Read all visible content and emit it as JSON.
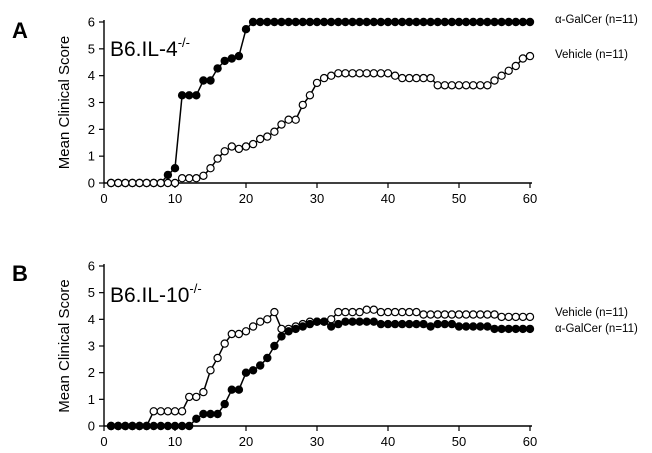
{
  "chart_data": [
    {
      "type": "line",
      "panel_letter": "A",
      "strain": {
        "base": "B6.IL-4",
        "sup": "-/-"
      },
      "ylabel": "Mean Clinical Score",
      "xlabel": "",
      "xlim": [
        0,
        60
      ],
      "ylim": [
        0,
        6
      ],
      "xticks": [
        0,
        10,
        20,
        30,
        40,
        50,
        60
      ],
      "yticks": [
        0,
        1,
        2,
        3,
        4,
        5,
        6
      ],
      "legend_placement": "right",
      "series": [
        {
          "name": "α-GalCer (n=11)",
          "marker": "filled",
          "x": [
            1,
            2,
            3,
            4,
            5,
            6,
            7,
            8,
            9,
            10,
            11,
            12,
            13,
            14,
            15,
            16,
            17,
            18,
            19,
            20,
            21,
            22,
            23,
            24,
            25,
            26,
            27,
            28,
            29,
            30,
            31,
            32,
            33,
            34,
            35,
            36,
            37,
            38,
            39,
            40,
            41,
            42,
            43,
            44,
            45,
            46,
            47,
            48,
            49,
            50,
            51,
            52,
            53,
            54,
            55,
            56,
            57,
            58,
            59,
            60
          ],
          "values": [
            0,
            0,
            0,
            0,
            0,
            0,
            0,
            0,
            0.3,
            0.55,
            3.27,
            3.27,
            3.27,
            3.82,
            3.82,
            4.27,
            4.55,
            4.64,
            4.73,
            5.73,
            6,
            6,
            6,
            6,
            6,
            6,
            6,
            6,
            6,
            6,
            6,
            6,
            6,
            6,
            6,
            6,
            6,
            6,
            6,
            6,
            6,
            6,
            6,
            6,
            6,
            6,
            6,
            6,
            6,
            6,
            6,
            6,
            6,
            6,
            6,
            6,
            6,
            6,
            6,
            6
          ]
        },
        {
          "name": "Vehicle (n=11)",
          "marker": "open",
          "x": [
            1,
            2,
            3,
            4,
            5,
            6,
            7,
            8,
            9,
            10,
            11,
            12,
            13,
            14,
            15,
            16,
            17,
            18,
            19,
            20,
            21,
            22,
            23,
            24,
            25,
            26,
            27,
            28,
            29,
            30,
            31,
            32,
            33,
            34,
            35,
            36,
            37,
            38,
            39,
            40,
            41,
            42,
            43,
            44,
            45,
            46,
            47,
            48,
            49,
            50,
            51,
            52,
            53,
            54,
            55,
            56,
            57,
            58,
            59,
            60
          ],
          "values": [
            0,
            0,
            0,
            0,
            0,
            0,
            0,
            0,
            0,
            0,
            0.18,
            0.18,
            0.18,
            0.27,
            0.55,
            0.91,
            1.18,
            1.36,
            1.27,
            1.36,
            1.45,
            1.64,
            1.73,
            1.91,
            2.18,
            2.36,
            2.36,
            2.91,
            3.27,
            3.73,
            3.91,
            4,
            4.09,
            4.09,
            4.09,
            4.09,
            4.09,
            4.09,
            4.09,
            4.09,
            4,
            3.91,
            3.91,
            3.91,
            3.91,
            3.91,
            3.64,
            3.64,
            3.64,
            3.64,
            3.64,
            3.64,
            3.64,
            3.64,
            3.82,
            4,
            4.18,
            4.36,
            4.64,
            4.73
          ]
        }
      ]
    },
    {
      "type": "line",
      "panel_letter": "B",
      "strain": {
        "base": "B6.IL-10",
        "sup": "-/-"
      },
      "ylabel": "Mean Clinical Score",
      "xlabel": "",
      "xlim": [
        0,
        60
      ],
      "ylim": [
        0,
        6
      ],
      "xticks": [
        0,
        10,
        20,
        30,
        40,
        50,
        60
      ],
      "yticks": [
        0,
        1,
        2,
        3,
        4,
        5,
        6
      ],
      "legend_placement": "right",
      "series": [
        {
          "name": "Vehicle (n=11)",
          "marker": "open",
          "x": [
            1,
            2,
            3,
            4,
            5,
            6,
            7,
            8,
            9,
            10,
            11,
            12,
            13,
            14,
            15,
            16,
            17,
            18,
            19,
            20,
            21,
            22,
            23,
            24,
            25,
            26,
            27,
            28,
            29,
            30,
            31,
            32,
            33,
            34,
            35,
            36,
            37,
            38,
            39,
            40,
            41,
            42,
            43,
            44,
            45,
            46,
            47,
            48,
            49,
            50,
            51,
            52,
            53,
            54,
            55,
            56,
            57,
            58,
            59,
            60
          ],
          "values": [
            0,
            0,
            0,
            0,
            0,
            0,
            0.55,
            0.55,
            0.55,
            0.55,
            0.55,
            1.09,
            1.09,
            1.27,
            2.09,
            2.55,
            3.09,
            3.45,
            3.45,
            3.55,
            3.73,
            3.91,
            4,
            4.27,
            3.64,
            3.64,
            3.73,
            3.82,
            3.91,
            3.91,
            3.91,
            4,
            4.27,
            4.27,
            4.27,
            4.27,
            4.36,
            4.36,
            4.27,
            4.27,
            4.27,
            4.27,
            4.27,
            4.27,
            4.18,
            4.18,
            4.18,
            4.18,
            4.18,
            4.18,
            4.18,
            4.18,
            4.18,
            4.18,
            4.18,
            4.09,
            4.09,
            4.09,
            4.09,
            4.09
          ]
        },
        {
          "name": "α-GalCer (n=11)",
          "marker": "filled",
          "x": [
            1,
            2,
            3,
            4,
            5,
            6,
            7,
            8,
            9,
            10,
            11,
            12,
            13,
            14,
            15,
            16,
            17,
            18,
            19,
            20,
            21,
            22,
            23,
            24,
            25,
            26,
            27,
            28,
            29,
            30,
            31,
            32,
            33,
            34,
            35,
            36,
            37,
            38,
            39,
            40,
            41,
            42,
            43,
            44,
            45,
            46,
            47,
            48,
            49,
            50,
            51,
            52,
            53,
            54,
            55,
            56,
            57,
            58,
            59,
            60
          ],
          "values": [
            0,
            0,
            0,
            0,
            0,
            0,
            0,
            0,
            0,
            0,
            0,
            0,
            0.27,
            0.45,
            0.45,
            0.45,
            0.82,
            1.36,
            1.36,
            2,
            2.09,
            2.27,
            2.55,
            3,
            3.36,
            3.55,
            3.64,
            3.73,
            3.82,
            3.91,
            3.91,
            3.73,
            3.82,
            3.91,
            3.91,
            3.91,
            3.91,
            3.91,
            3.82,
            3.82,
            3.82,
            3.82,
            3.82,
            3.82,
            3.82,
            3.73,
            3.82,
            3.82,
            3.82,
            3.73,
            3.73,
            3.73,
            3.73,
            3.73,
            3.64,
            3.64,
            3.64,
            3.64,
            3.64,
            3.64
          ]
        }
      ]
    }
  ]
}
